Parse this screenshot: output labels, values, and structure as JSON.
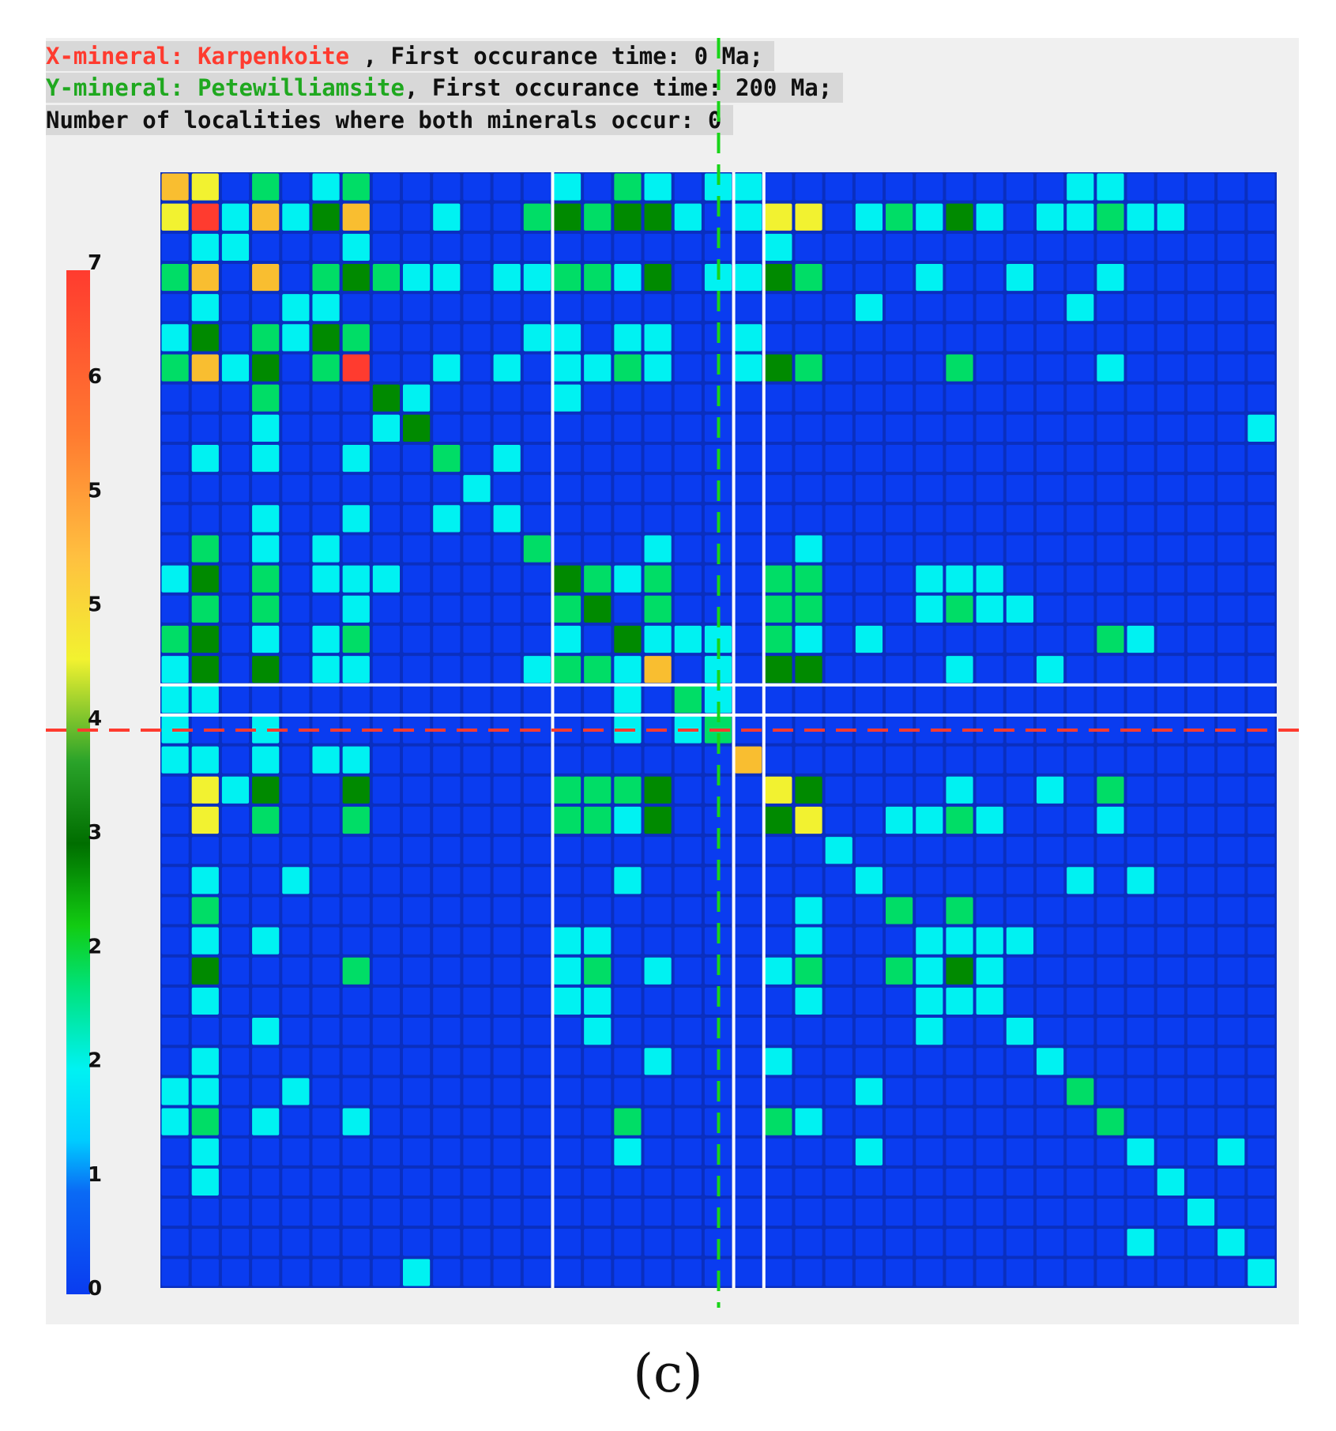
{
  "header": {
    "x_prefix": "X-mineral: ",
    "x_mineral": "Karpenkoite",
    "x_suffix": " , First occurance time: 0 Ma;",
    "y_prefix": "Y-mineral: ",
    "y_mineral": "Petewilliamsite",
    "y_suffix": ", First occurance time: 200 Ma;",
    "localities_line": "Number of localities where both minerals occur: 0"
  },
  "caption": "(c)",
  "colors": {
    "x_mineral": "#ff3b2f",
    "y_mineral": "#1fa81f",
    "marker_horizontal": "#ff3b2f",
    "marker_vertical": "#19d419",
    "cell_background": "#0a2fbf",
    "colormap": [
      "#0a3cf0",
      "#00f2f2",
      "#00dd66",
      "#008a00",
      "#f2f230",
      "#ff8a30",
      "#ff3b2f"
    ]
  },
  "chart_data": {
    "type": "heatmap",
    "rows": 37,
    "cols": 37,
    "colorbar": {
      "min": 0,
      "max": 7,
      "tick_labels": [
        "0",
        "1",
        "2",
        "2",
        "3",
        "4",
        "5",
        "5",
        "6",
        "7"
      ]
    },
    "grid_gaps_after_col": [
      12,
      18,
      19
    ],
    "grid_gaps_after_row": [
      16,
      17
    ],
    "highlight_col": 18,
    "highlight_row": 18,
    "cells": [
      [
        0,
        0,
        4.5
      ],
      [
        0,
        1,
        4
      ],
      [
        0,
        3,
        2
      ],
      [
        0,
        5,
        1
      ],
      [
        0,
        6,
        2
      ],
      [
        0,
        13,
        1
      ],
      [
        0,
        15,
        2
      ],
      [
        0,
        16,
        1
      ],
      [
        0,
        18,
        1
      ],
      [
        0,
        19,
        1
      ],
      [
        0,
        30,
        1
      ],
      [
        0,
        31,
        1
      ],
      [
        1,
        0,
        4
      ],
      [
        1,
        1,
        7
      ],
      [
        1,
        2,
        1
      ],
      [
        1,
        3,
        4.5
      ],
      [
        1,
        4,
        1
      ],
      [
        1,
        5,
        3
      ],
      [
        1,
        6,
        4.5
      ],
      [
        1,
        9,
        1
      ],
      [
        1,
        12,
        2
      ],
      [
        1,
        13,
        3
      ],
      [
        1,
        14,
        2
      ],
      [
        1,
        15,
        3
      ],
      [
        1,
        16,
        3
      ],
      [
        1,
        17,
        1
      ],
      [
        1,
        19,
        1
      ],
      [
        1,
        20,
        4
      ],
      [
        1,
        21,
        4
      ],
      [
        1,
        23,
        1
      ],
      [
        1,
        24,
        2
      ],
      [
        1,
        25,
        1
      ],
      [
        1,
        26,
        3
      ],
      [
        1,
        27,
        1
      ],
      [
        1,
        29,
        1
      ],
      [
        1,
        30,
        1
      ],
      [
        1,
        31,
        2
      ],
      [
        1,
        32,
        1
      ],
      [
        1,
        33,
        1
      ],
      [
        2,
        1,
        1
      ],
      [
        2,
        2,
        1
      ],
      [
        2,
        6,
        1
      ],
      [
        2,
        20,
        1
      ],
      [
        3,
        0,
        2
      ],
      [
        3,
        1,
        4.5
      ],
      [
        3,
        3,
        4.5
      ],
      [
        3,
        5,
        2
      ],
      [
        3,
        6,
        3
      ],
      [
        3,
        7,
        2
      ],
      [
        3,
        8,
        1
      ],
      [
        3,
        9,
        1
      ],
      [
        3,
        11,
        1
      ],
      [
        3,
        12,
        1
      ],
      [
        3,
        13,
        2
      ],
      [
        3,
        14,
        2
      ],
      [
        3,
        15,
        1
      ],
      [
        3,
        16,
        3
      ],
      [
        3,
        18,
        1
      ],
      [
        3,
        19,
        1
      ],
      [
        3,
        20,
        3
      ],
      [
        3,
        21,
        2
      ],
      [
        3,
        25,
        1
      ],
      [
        3,
        28,
        1
      ],
      [
        3,
        31,
        1
      ],
      [
        4,
        1,
        1
      ],
      [
        4,
        4,
        1
      ],
      [
        4,
        5,
        1
      ],
      [
        4,
        23,
        1
      ],
      [
        4,
        30,
        1
      ],
      [
        5,
        0,
        1
      ],
      [
        5,
        1,
        3
      ],
      [
        5,
        3,
        2
      ],
      [
        5,
        4,
        1
      ],
      [
        5,
        5,
        3
      ],
      [
        5,
        6,
        2
      ],
      [
        5,
        12,
        1
      ],
      [
        5,
        13,
        1
      ],
      [
        5,
        15,
        1
      ],
      [
        5,
        16,
        1
      ],
      [
        5,
        19,
        1
      ],
      [
        6,
        0,
        2
      ],
      [
        6,
        1,
        4.5
      ],
      [
        6,
        2,
        1
      ],
      [
        6,
        3,
        3
      ],
      [
        6,
        5,
        2
      ],
      [
        6,
        6,
        6
      ],
      [
        6,
        9,
        1
      ],
      [
        6,
        11,
        1
      ],
      [
        6,
        13,
        1
      ],
      [
        6,
        14,
        1
      ],
      [
        6,
        15,
        2
      ],
      [
        6,
        16,
        1
      ],
      [
        6,
        19,
        1
      ],
      [
        6,
        20,
        3
      ],
      [
        6,
        21,
        2
      ],
      [
        6,
        26,
        2
      ],
      [
        6,
        31,
        1
      ],
      [
        7,
        3,
        2
      ],
      [
        7,
        7,
        3
      ],
      [
        7,
        8,
        1
      ],
      [
        7,
        13,
        1
      ],
      [
        8,
        3,
        1
      ],
      [
        8,
        7,
        1
      ],
      [
        8,
        8,
        3
      ],
      [
        8,
        36,
        1
      ],
      [
        9,
        1,
        1
      ],
      [
        9,
        3,
        1
      ],
      [
        9,
        6,
        1
      ],
      [
        9,
        9,
        2
      ],
      [
        9,
        11,
        1
      ],
      [
        10,
        10,
        1
      ],
      [
        11,
        3,
        1
      ],
      [
        11,
        6,
        1
      ],
      [
        11,
        9,
        1
      ],
      [
        11,
        11,
        1
      ],
      [
        12,
        1,
        2
      ],
      [
        12,
        3,
        1
      ],
      [
        12,
        5,
        1
      ],
      [
        12,
        12,
        2
      ],
      [
        12,
        16,
        1
      ],
      [
        12,
        21,
        1
      ],
      [
        13,
        0,
        1
      ],
      [
        13,
        1,
        3
      ],
      [
        13,
        3,
        2
      ],
      [
        13,
        5,
        1
      ],
      [
        13,
        6,
        1
      ],
      [
        13,
        7,
        1
      ],
      [
        13,
        13,
        3
      ],
      [
        13,
        14,
        2
      ],
      [
        13,
        15,
        1
      ],
      [
        13,
        16,
        2
      ],
      [
        13,
        20,
        2
      ],
      [
        13,
        21,
        2
      ],
      [
        13,
        25,
        1
      ],
      [
        13,
        26,
        1
      ],
      [
        13,
        27,
        1
      ],
      [
        14,
        1,
        2
      ],
      [
        14,
        3,
        2
      ],
      [
        14,
        6,
        1
      ],
      [
        14,
        13,
        2
      ],
      [
        14,
        14,
        3
      ],
      [
        14,
        16,
        2
      ],
      [
        14,
        20,
        2
      ],
      [
        14,
        21,
        2
      ],
      [
        14,
        25,
        1
      ],
      [
        14,
        26,
        2
      ],
      [
        14,
        27,
        1
      ],
      [
        14,
        28,
        1
      ],
      [
        15,
        0,
        2
      ],
      [
        15,
        1,
        3
      ],
      [
        15,
        3,
        1
      ],
      [
        15,
        5,
        1
      ],
      [
        15,
        6,
        2
      ],
      [
        15,
        13,
        1
      ],
      [
        15,
        15,
        3
      ],
      [
        15,
        16,
        1
      ],
      [
        15,
        17,
        1
      ],
      [
        15,
        18,
        1
      ],
      [
        15,
        20,
        2
      ],
      [
        15,
        21,
        1
      ],
      [
        15,
        23,
        1
      ],
      [
        15,
        31,
        2
      ],
      [
        15,
        32,
        1
      ],
      [
        16,
        0,
        1
      ],
      [
        16,
        1,
        3
      ],
      [
        16,
        3,
        3
      ],
      [
        16,
        5,
        1
      ],
      [
        16,
        6,
        1
      ],
      [
        16,
        12,
        1
      ],
      [
        16,
        13,
        2
      ],
      [
        16,
        14,
        2
      ],
      [
        16,
        15,
        1
      ],
      [
        16,
        16,
        4.5
      ],
      [
        16,
        18,
        1
      ],
      [
        16,
        20,
        3
      ],
      [
        16,
        21,
        3
      ],
      [
        16,
        26,
        1
      ],
      [
        16,
        29,
        1
      ],
      [
        17,
        0,
        1
      ],
      [
        17,
        1,
        1
      ],
      [
        17,
        15,
        1
      ],
      [
        17,
        17,
        2
      ],
      [
        17,
        18,
        1
      ],
      [
        18,
        0,
        1
      ],
      [
        18,
        3,
        1
      ],
      [
        18,
        15,
        1
      ],
      [
        18,
        17,
        1
      ],
      [
        18,
        18,
        2
      ],
      [
        19,
        0,
        1
      ],
      [
        19,
        1,
        1
      ],
      [
        19,
        3,
        1
      ],
      [
        19,
        5,
        1
      ],
      [
        19,
        6,
        1
      ],
      [
        19,
        19,
        4.5
      ],
      [
        20,
        1,
        4
      ],
      [
        20,
        2,
        1
      ],
      [
        20,
        3,
        3
      ],
      [
        20,
        6,
        3
      ],
      [
        20,
        13,
        2
      ],
      [
        20,
        14,
        2
      ],
      [
        20,
        15,
        2
      ],
      [
        20,
        16,
        3
      ],
      [
        20,
        20,
        4
      ],
      [
        20,
        21,
        3
      ],
      [
        20,
        26,
        1
      ],
      [
        20,
        29,
        1
      ],
      [
        20,
        31,
        2
      ],
      [
        21,
        1,
        4
      ],
      [
        21,
        3,
        2
      ],
      [
        21,
        6,
        2
      ],
      [
        21,
        13,
        2
      ],
      [
        21,
        14,
        2
      ],
      [
        21,
        15,
        1
      ],
      [
        21,
        16,
        3
      ],
      [
        21,
        20,
        3
      ],
      [
        21,
        21,
        4
      ],
      [
        21,
        24,
        1
      ],
      [
        21,
        25,
        1
      ],
      [
        21,
        26,
        2
      ],
      [
        21,
        27,
        1
      ],
      [
        21,
        31,
        1
      ],
      [
        22,
        22,
        1
      ],
      [
        23,
        1,
        1
      ],
      [
        23,
        4,
        1
      ],
      [
        23,
        15,
        1
      ],
      [
        23,
        23,
        1
      ],
      [
        23,
        30,
        1
      ],
      [
        23,
        32,
        1
      ],
      [
        24,
        1,
        2
      ],
      [
        24,
        21,
        1
      ],
      [
        24,
        24,
        2
      ],
      [
        24,
        26,
        2
      ],
      [
        25,
        1,
        1
      ],
      [
        25,
        3,
        1
      ],
      [
        25,
        13,
        1
      ],
      [
        25,
        14,
        1
      ],
      [
        25,
        21,
        1
      ],
      [
        25,
        25,
        1
      ],
      [
        25,
        26,
        1
      ],
      [
        25,
        27,
        1
      ],
      [
        25,
        28,
        1
      ],
      [
        26,
        1,
        3
      ],
      [
        26,
        6,
        2
      ],
      [
        26,
        13,
        1
      ],
      [
        26,
        14,
        2
      ],
      [
        26,
        16,
        1
      ],
      [
        26,
        20,
        1
      ],
      [
        26,
        21,
        2
      ],
      [
        26,
        24,
        2
      ],
      [
        26,
        25,
        1
      ],
      [
        26,
        26,
        3
      ],
      [
        26,
        27,
        1
      ],
      [
        27,
        1,
        1
      ],
      [
        27,
        13,
        1
      ],
      [
        27,
        14,
        1
      ],
      [
        27,
        21,
        1
      ],
      [
        27,
        25,
        1
      ],
      [
        27,
        26,
        1
      ],
      [
        27,
        27,
        1
      ],
      [
        28,
        3,
        1
      ],
      [
        28,
        14,
        1
      ],
      [
        28,
        25,
        1
      ],
      [
        28,
        28,
        1
      ],
      [
        29,
        1,
        1
      ],
      [
        29,
        16,
        1
      ],
      [
        29,
        20,
        1
      ],
      [
        29,
        29,
        1
      ],
      [
        30,
        0,
        1
      ],
      [
        30,
        1,
        1
      ],
      [
        30,
        4,
        1
      ],
      [
        30,
        23,
        1
      ],
      [
        30,
        30,
        2
      ],
      [
        31,
        0,
        1
      ],
      [
        31,
        1,
        2
      ],
      [
        31,
        3,
        1
      ],
      [
        31,
        6,
        1
      ],
      [
        31,
        15,
        2
      ],
      [
        31,
        20,
        2
      ],
      [
        31,
        21,
        1
      ],
      [
        31,
        31,
        2
      ],
      [
        32,
        1,
        1
      ],
      [
        32,
        15,
        1
      ],
      [
        32,
        23,
        1
      ],
      [
        32,
        32,
        1
      ],
      [
        32,
        35,
        1
      ],
      [
        33,
        1,
        1
      ],
      [
        33,
        33,
        1
      ],
      [
        34,
        34,
        1
      ],
      [
        35,
        32,
        1
      ],
      [
        35,
        35,
        1
      ],
      [
        36,
        8,
        1
      ],
      [
        36,
        36,
        1
      ]
    ]
  }
}
